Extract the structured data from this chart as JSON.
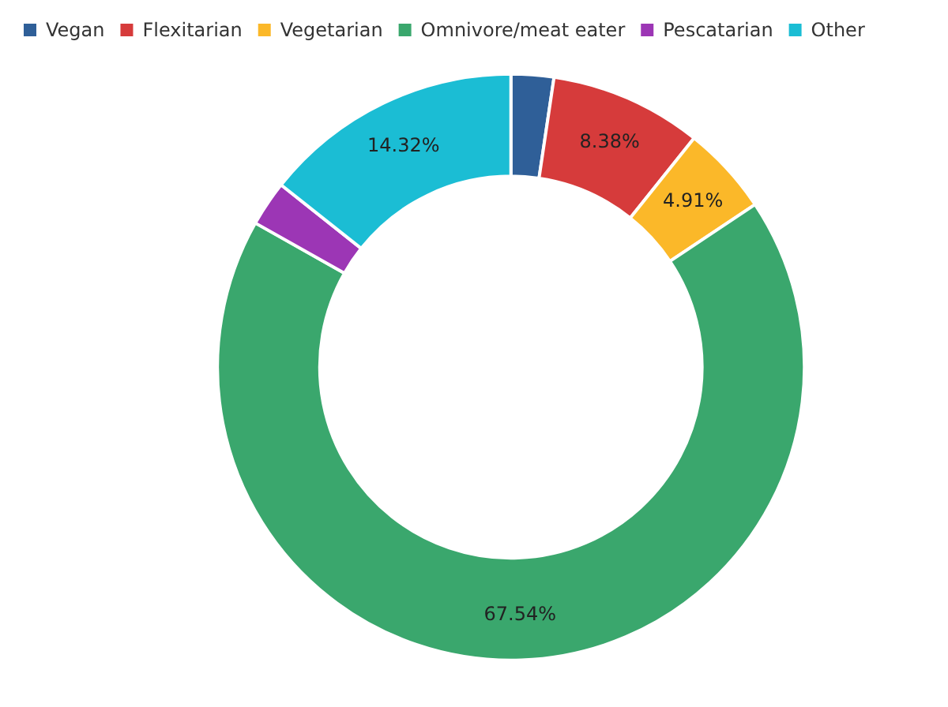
{
  "chart_data": {
    "type": "donut",
    "categories": [
      "Vegan",
      "Flexitarian",
      "Vegetarian",
      "Omnivore/meat eater",
      "Pescatarian",
      "Other"
    ],
    "values": [
      2.35,
      8.38,
      4.91,
      67.54,
      2.5,
      14.32
    ],
    "colors": [
      "#2f5f98",
      "#d63b3b",
      "#fbb829",
      "#3aa76d",
      "#9c36b5",
      "#1bbdd4"
    ],
    "value_labels": [
      null,
      "8.38%",
      "4.91%",
      "67.54%",
      null,
      "14.32%"
    ],
    "legend": "top left"
  }
}
